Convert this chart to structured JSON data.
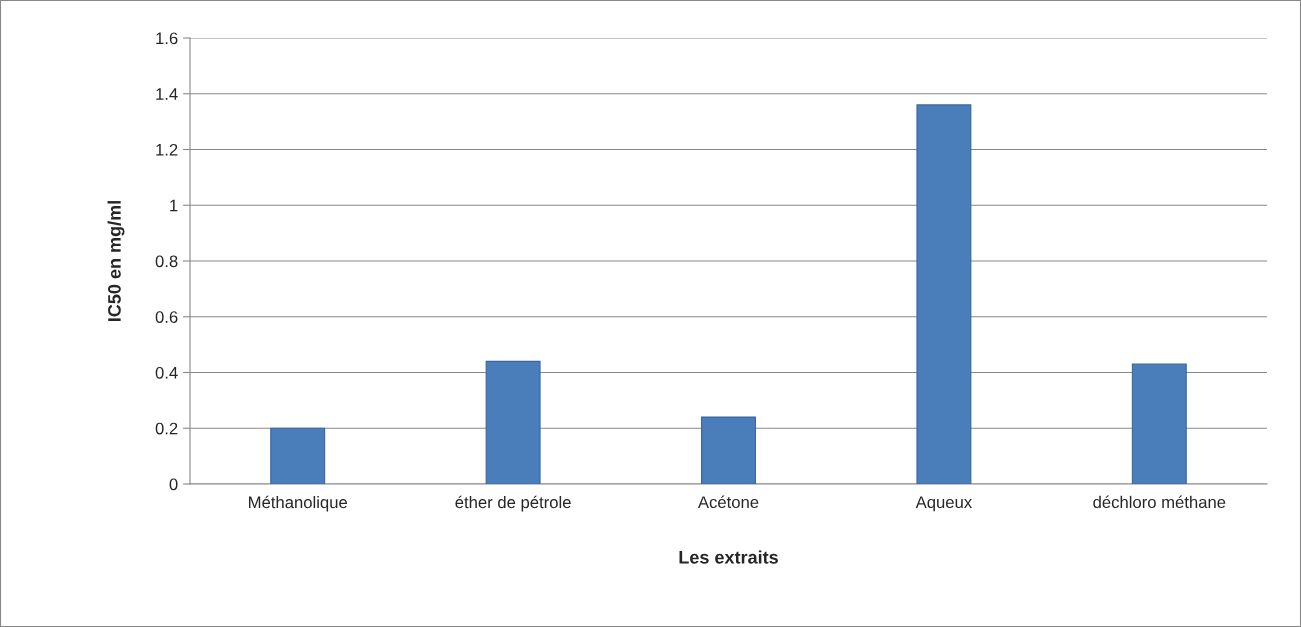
{
  "chart_data": {
    "type": "bar",
    "xlabel": "Les extraits",
    "ylabel": "IC50 en mg/ml",
    "categories": [
      "Méthanolique",
      "éther de pétrole",
      "Acétone",
      "Aqueux",
      "déchloro méthane"
    ],
    "values": [
      0.2,
      0.44,
      0.24,
      1.36,
      0.43
    ],
    "color": "#4a7ebb",
    "ylim": [
      0,
      1.6
    ],
    "yticks": [
      0,
      0.2,
      0.4,
      0.6,
      0.8,
      1,
      1.2,
      1.4,
      1.6
    ],
    "grid": "y",
    "legend": false
  }
}
